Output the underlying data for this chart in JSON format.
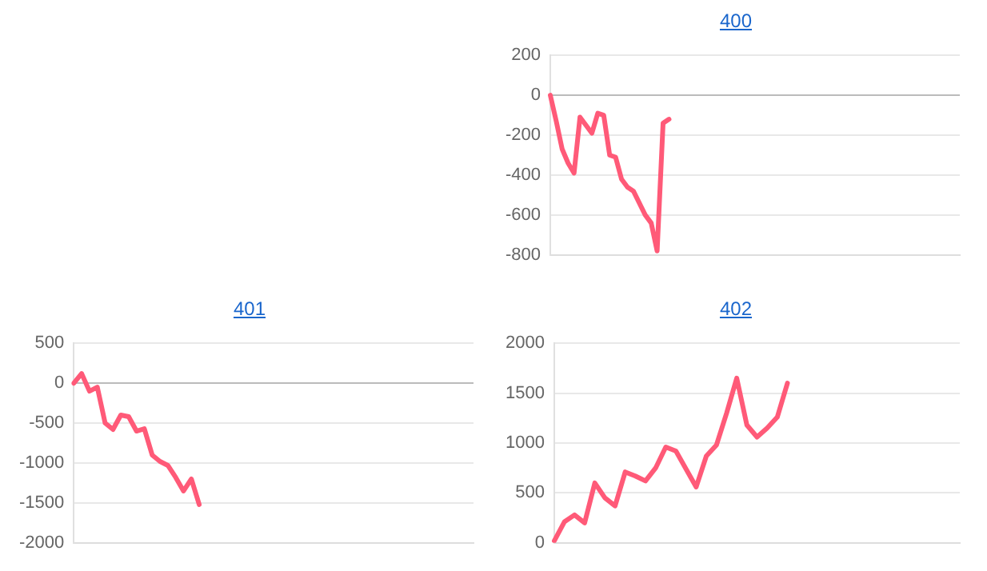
{
  "chart_data": [
    {
      "type": "line",
      "title": "400",
      "categories": [
        null,
        null,
        null,
        null,
        null,
        null,
        null,
        null,
        null,
        null,
        null,
        null,
        null,
        null,
        null,
        null,
        null,
        null,
        null,
        null,
        null,
        null,
        null,
        null,
        null,
        null,
        null,
        null,
        null,
        null,
        null,
        null,
        null,
        null,
        null,
        null,
        null,
        null,
        null,
        null,
        null,
        null,
        null,
        null,
        null,
        null,
        null,
        null,
        null,
        null,
        null,
        null,
        null,
        null,
        null,
        null,
        null,
        null,
        null,
        null,
        null,
        null,
        null,
        null,
        null,
        null,
        null,
        null,
        null,
        null
      ],
      "series": [
        {
          "color": "#ff5a78",
          "values": [
            0,
            -130,
            -270,
            -340,
            -390,
            -110,
            -150,
            -190,
            -90,
            -100,
            -300,
            -310,
            -420,
            -460,
            -480,
            -540,
            -600,
            -640,
            -780,
            -140,
            -120,
            null,
            null,
            null,
            null,
            null,
            null,
            null,
            null,
            null,
            null,
            null,
            null,
            null,
            null,
            null,
            null,
            null,
            null,
            null,
            null,
            null,
            null,
            null,
            null,
            null,
            null,
            null,
            null,
            null,
            null,
            null,
            null,
            null,
            null,
            null,
            null,
            null,
            null,
            null,
            null,
            null,
            null,
            null,
            null,
            null,
            null,
            null,
            null,
            null
          ]
        }
      ],
      "ylim": [
        -800,
        200
      ],
      "yticks": [
        -800,
        -600,
        -400,
        -200,
        0,
        200
      ],
      "grid": "y",
      "tick_labels": "y",
      "marker": "none",
      "legend": false
    },
    {
      "type": "line",
      "title": "401",
      "categories": [
        null,
        null,
        null,
        null,
        null,
        null,
        null,
        null,
        null,
        null,
        null,
        null,
        null,
        null,
        null,
        null,
        null,
        null,
        null,
        null,
        null,
        null,
        null,
        null,
        null,
        null,
        null,
        null,
        null,
        null,
        null,
        null,
        null,
        null,
        null,
        null,
        null,
        null,
        null,
        null,
        null,
        null,
        null,
        null,
        null,
        null,
        null,
        null,
        null,
        null,
        null,
        null
      ],
      "series": [
        {
          "color": "#ff5a78",
          "values": [
            0,
            120,
            -100,
            -50,
            -500,
            -580,
            -400,
            -420,
            -600,
            -570,
            -900,
            -980,
            -1030,
            -1180,
            -1350,
            -1200,
            -1520,
            null,
            null,
            null,
            null,
            null,
            null,
            null,
            null,
            null,
            null,
            null,
            null,
            null,
            null,
            null,
            null,
            null,
            null,
            null,
            null,
            null,
            null,
            null,
            null,
            null,
            null,
            null,
            null,
            null,
            null,
            null,
            null,
            null,
            null,
            null
          ]
        }
      ],
      "ylim": [
        -2000,
        500
      ],
      "yticks": [
        -2000,
        -1500,
        -1000,
        -500,
        0,
        500
      ],
      "grid": "y",
      "tick_labels": "y",
      "marker": "none",
      "legend": false
    },
    {
      "type": "line",
      "title": "402",
      "categories": [
        null,
        null,
        null,
        null,
        null,
        null,
        null,
        null,
        null,
        null,
        null,
        null,
        null,
        null,
        null,
        null,
        null,
        null,
        null,
        null,
        null,
        null,
        null,
        null,
        null,
        null,
        null,
        null,
        null,
        null,
        null,
        null,
        null,
        null,
        null,
        null,
        null,
        null,
        null,
        null,
        null
      ],
      "series": [
        {
          "color": "#ff5a78",
          "values": [
            20,
            210,
            280,
            200,
            600,
            450,
            370,
            710,
            670,
            620,
            750,
            960,
            920,
            740,
            560,
            870,
            980,
            1300,
            1650,
            1180,
            1060,
            1150,
            1260,
            1600,
            null,
            null,
            null,
            null,
            null,
            null,
            null,
            null,
            null,
            null,
            null,
            null,
            null,
            null,
            null,
            null,
            null
          ]
        }
      ],
      "ylim": [
        0,
        2000
      ],
      "yticks": [
        0,
        500,
        1000,
        1500,
        2000
      ],
      "grid": "y",
      "tick_labels": "y",
      "marker": "none",
      "legend": false
    }
  ]
}
